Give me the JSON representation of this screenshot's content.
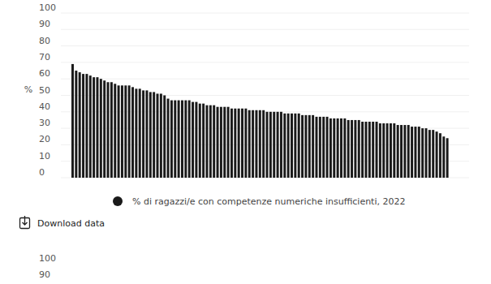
{
  "chart_data": {
    "type": "bar",
    "y_label": "%",
    "series": [
      {
        "name": "% di ragazzi/e con competenze numeriche insufficienti, 2022",
        "color": "#1a1a1a",
        "values": [
          69,
          65,
          64,
          63,
          63,
          62,
          61,
          61,
          60,
          59,
          58,
          58,
          57,
          56,
          56,
          56,
          56,
          55,
          54,
          54,
          53,
          53,
          52,
          52,
          51,
          51,
          50,
          48,
          47,
          47,
          47,
          47,
          47,
          47,
          46,
          46,
          45,
          45,
          44,
          44,
          44,
          43,
          43,
          43,
          43,
          42,
          42,
          42,
          42,
          42,
          41,
          41,
          41,
          41,
          41,
          40,
          40,
          40,
          40,
          40,
          39,
          39,
          39,
          39,
          39,
          38,
          38,
          38,
          38,
          37,
          37,
          37,
          37,
          36,
          36,
          36,
          36,
          36,
          35,
          35,
          35,
          35,
          34,
          34,
          34,
          34,
          34,
          33,
          33,
          33,
          33,
          33,
          32,
          32,
          32,
          32,
          31,
          31,
          31,
          30,
          30,
          29,
          29,
          28,
          27,
          25,
          24
        ]
      }
    ],
    "categories": [
      null,
      null,
      null,
      null,
      null,
      null,
      null,
      null,
      null,
      null,
      null,
      null,
      null,
      null,
      null,
      null,
      null,
      null,
      null,
      null,
      null,
      null,
      null,
      null,
      null,
      null,
      null,
      null,
      null,
      null,
      null,
      null,
      null,
      null,
      null,
      null,
      null,
      null,
      null,
      null,
      null,
      null,
      null,
      null,
      null,
      null,
      null,
      null,
      null,
      null,
      null,
      null,
      null,
      null,
      null,
      null,
      null,
      null,
      null,
      null,
      null,
      null,
      null,
      null,
      null,
      null,
      null,
      null,
      null,
      null,
      null,
      null,
      null,
      null,
      null,
      null,
      null,
      null,
      null,
      null,
      null,
      null,
      null,
      null,
      null,
      null,
      null,
      null,
      null,
      null,
      null,
      null,
      null,
      null,
      null,
      null,
      null,
      null,
      null,
      null,
      null,
      null,
      null,
      null,
      null,
      null,
      null
    ],
    "ylim": [
      0,
      100
    ],
    "yticks": [
      0,
      10,
      20,
      30,
      40,
      50,
      60,
      70,
      80,
      90,
      100
    ],
    "grid": true,
    "tick_labels": "y",
    "legend": "bottom"
  },
  "download_label": "Download data",
  "next_chart_axis": {
    "yticks": [
      100,
      90
    ]
  }
}
